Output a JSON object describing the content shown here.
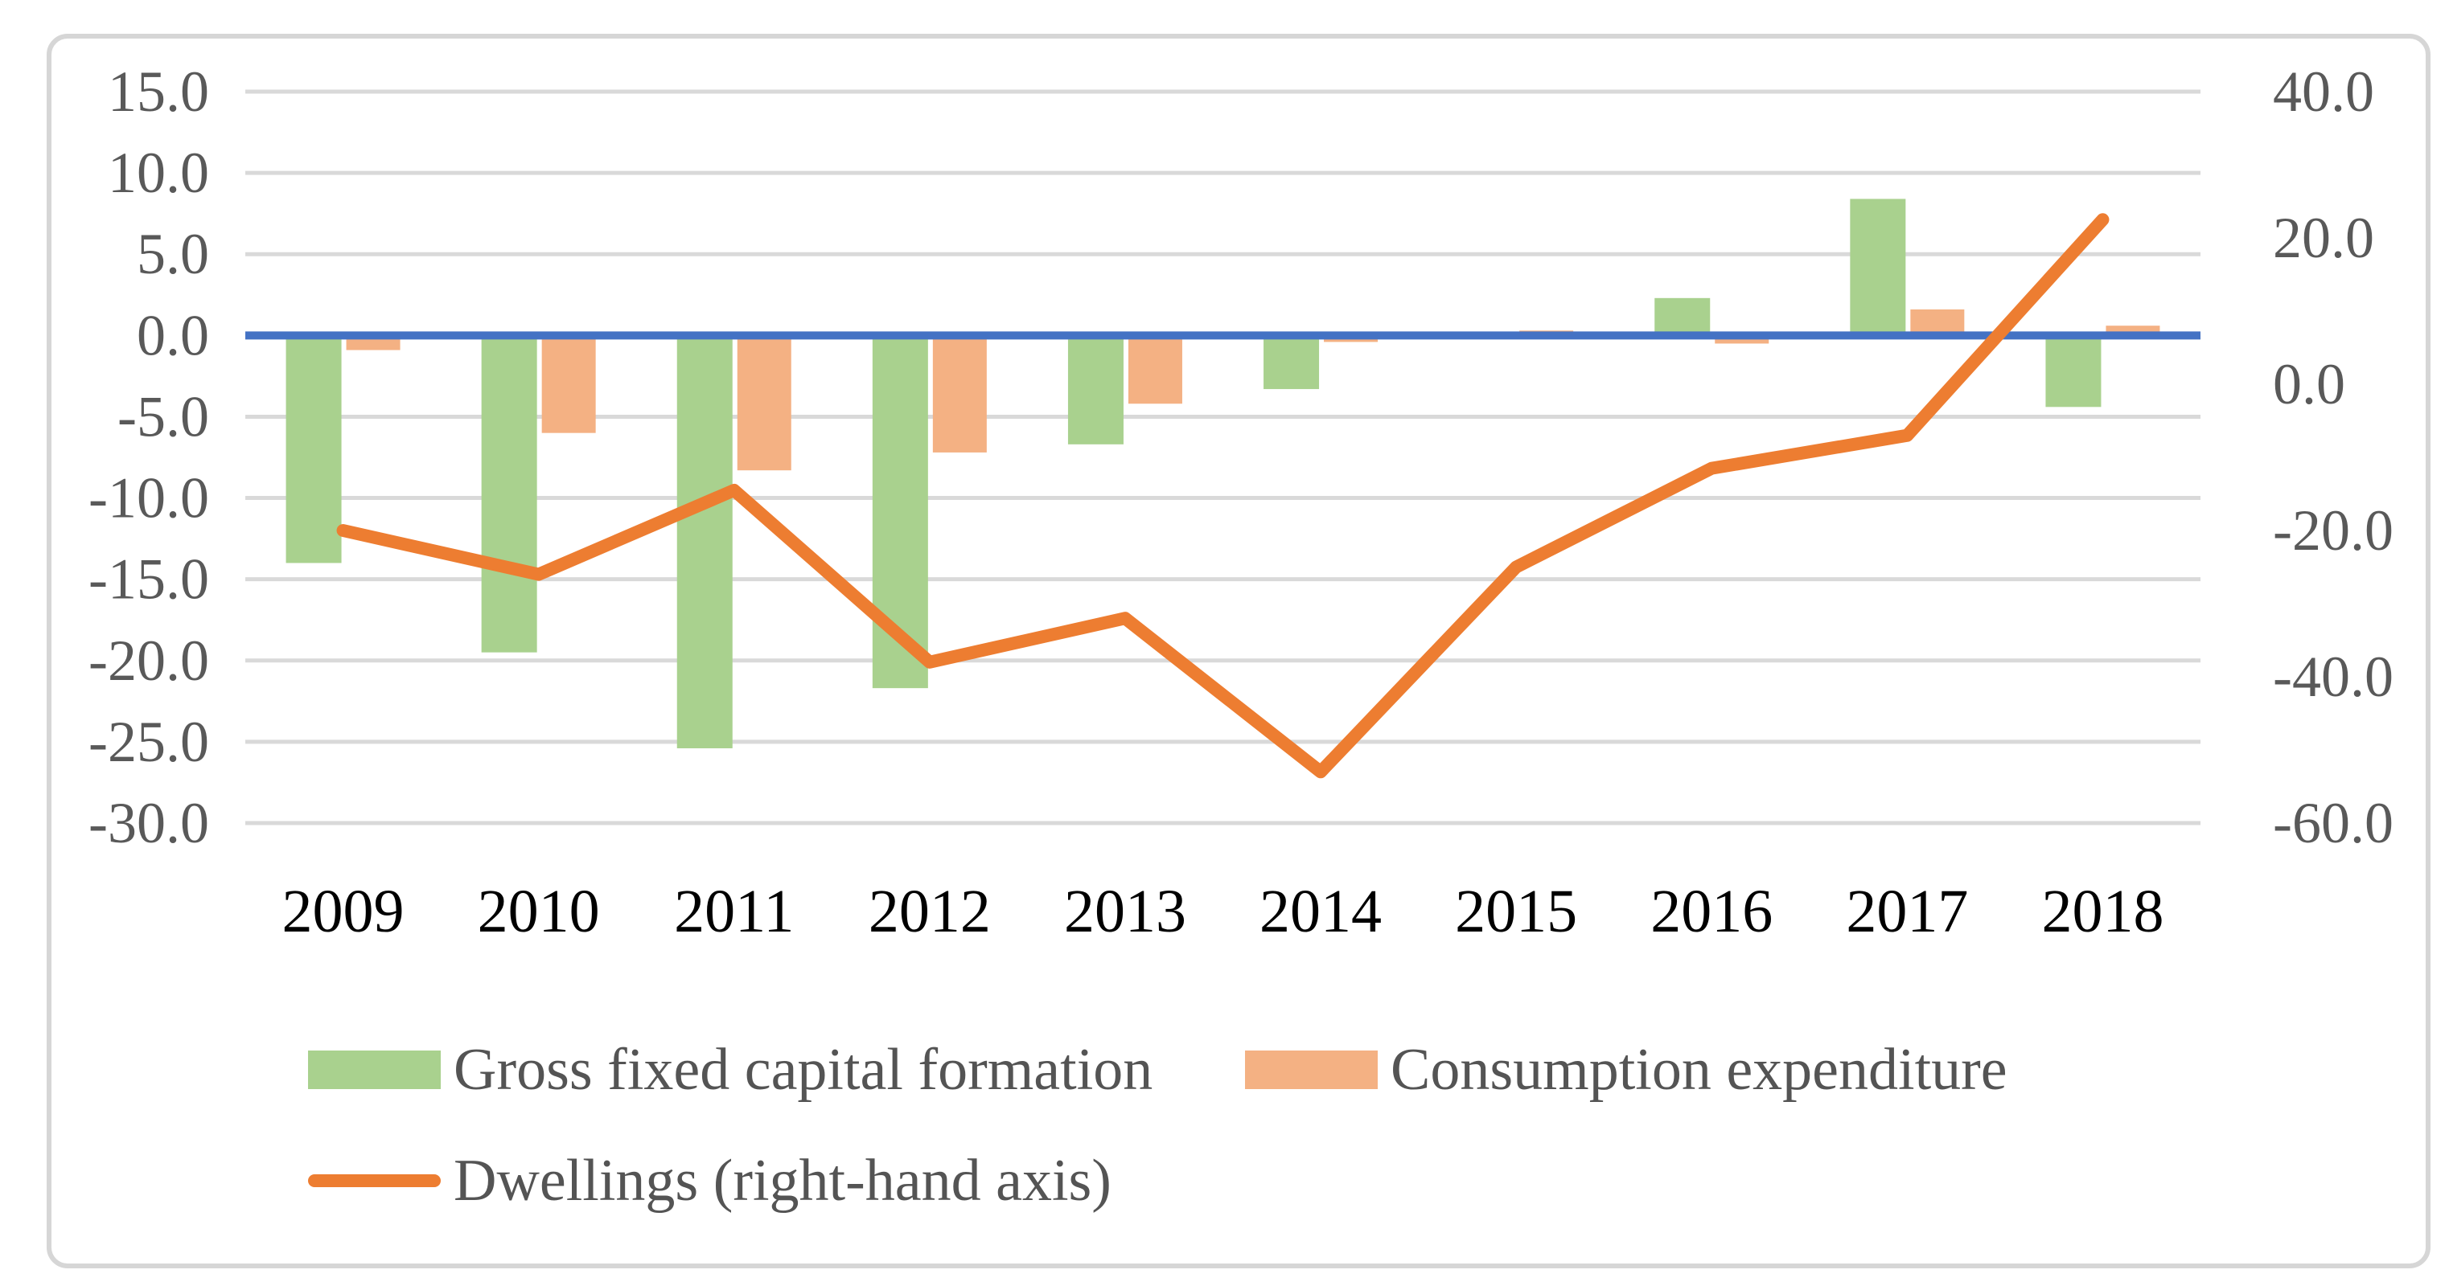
{
  "chart_data": {
    "type": "bar+line combo",
    "title": "",
    "xlabel": "",
    "ylabel": "",
    "grid": true,
    "categories": [
      "2009",
      "2010",
      "2011",
      "2012",
      "2013",
      "2014",
      "2015",
      "2016",
      "2017",
      "2018"
    ],
    "series": [
      {
        "name": "Gross fixed capital formation",
        "type": "bar",
        "axis": "left",
        "color": "#A9D18E",
        "values": [
          -14.0,
          -19.5,
          -25.4,
          -21.7,
          -6.7,
          -3.3,
          0.0,
          2.3,
          8.4,
          -4.4
        ]
      },
      {
        "name": "Consumption expenditure",
        "type": "bar",
        "axis": "left",
        "color": "#F4B183",
        "values": [
          -0.9,
          -6.0,
          -8.3,
          -7.2,
          -4.2,
          -0.4,
          0.3,
          -0.5,
          1.6,
          0.6
        ]
      },
      {
        "name": "Dwellings (right-hand axis)",
        "type": "line",
        "axis": "right",
        "color": "#ED7D31",
        "values": [
          -20.0,
          -26.0,
          -14.5,
          -38.0,
          -32.0,
          -53.0,
          -25.0,
          -11.5,
          -7.0,
          22.5
        ]
      }
    ],
    "left_axis": {
      "max": 15,
      "min": -30,
      "step": 5,
      "ticks": [
        {
          "value": 15,
          "label": "15.0"
        },
        {
          "value": 10,
          "label": "10.0"
        },
        {
          "value": 5,
          "label": "5.0"
        },
        {
          "value": 0,
          "label": "0.0"
        },
        {
          "value": -5,
          "label": "-5.0"
        },
        {
          "value": -10,
          "label": "-10.0"
        },
        {
          "value": -15,
          "label": "-15.0"
        },
        {
          "value": -20,
          "label": "-20.0"
        },
        {
          "value": -25,
          "label": "-25.0"
        },
        {
          "value": -30,
          "label": "-30.0"
        }
      ]
    },
    "right_axis": {
      "max": 40,
      "min": -60,
      "step": 20,
      "ticks": [
        {
          "value": 40,
          "label": "40.0"
        },
        {
          "value": 20,
          "label": "20.0"
        },
        {
          "value": 0,
          "label": "0.0"
        },
        {
          "value": -20,
          "label": "-20.0"
        },
        {
          "value": -40,
          "label": "-40.0"
        },
        {
          "value": -60,
          "label": "-60.0"
        }
      ]
    },
    "legend_position": "bottom-left, two rows"
  },
  "legend": {
    "gfcf_label": "Gross fixed capital formation",
    "consumption_label": "Consumption expenditure",
    "dwellings_label": "Dwellings (right-hand axis)"
  },
  "colors": {
    "gfcf_bar": "#A9D18E",
    "consumption_bar": "#F4B183",
    "dwellings_line": "#ED7D31",
    "zero_line": "#4472C4",
    "gridline": "#D9D9D9",
    "axis_text": "#595959",
    "year_text": "#000000",
    "figure_border": "#D6D6D6"
  }
}
